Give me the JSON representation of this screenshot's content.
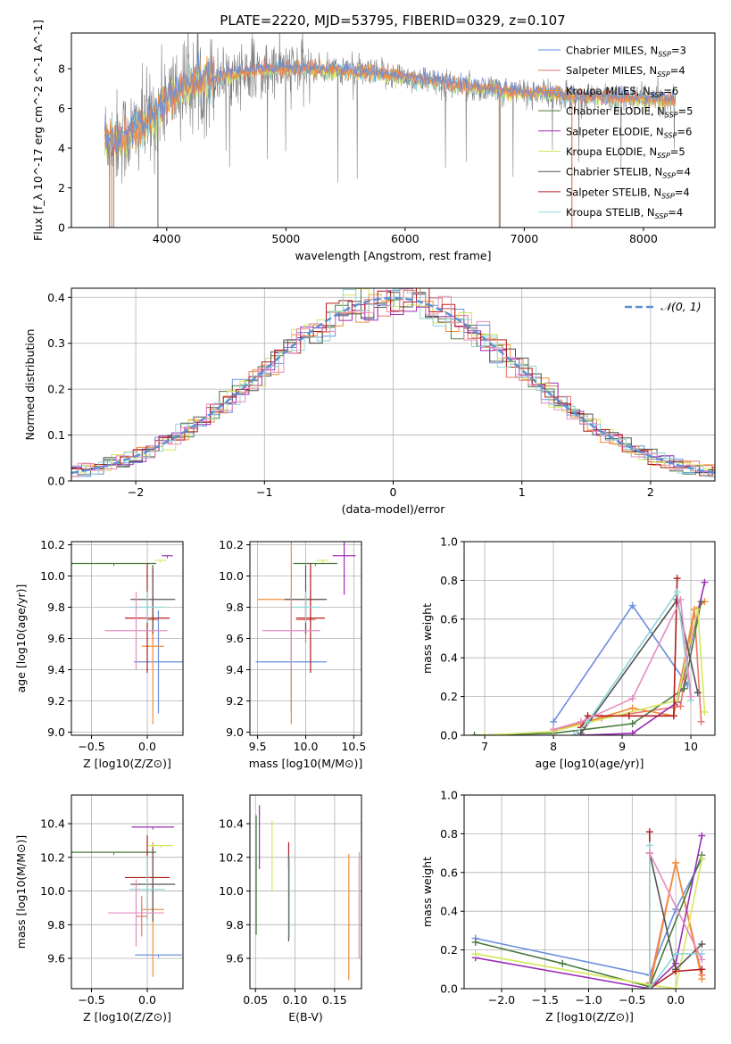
{
  "title": "PLATE=2220, MJD=53795, FIBERID=0329, z=0.107",
  "colors": {
    "Chabrier MILES": "#6a8fdc",
    "Salpeter MILES": "#e8756b",
    "Kroupa MILES": "#f08d3a",
    "Chabrier ELODIE": "#4a7a3f",
    "Salpeter ELODIE": "#9b2fb5",
    "Kroupa ELODIE": "#d4e85a",
    "Chabrier STELIB": "#555555",
    "Salpeter STELIB": "#b01c1c",
    "Kroupa STELIB": "#8fd4d8",
    "extra1": "#e58cc2",
    "data": "#808080",
    "normal": "#5b8fd6"
  },
  "chart_data": [
    {
      "id": "spectrum",
      "type": "line",
      "xlabel": "wavelength [Angstrom, rest frame]",
      "ylabel": "Flux [f_λ 10^-17 erg cm^-2 s^-1 A^-1]",
      "xlim": [
        3200,
        8600
      ],
      "ylim": [
        0,
        9.8
      ],
      "xticks": [
        4000,
        5000,
        6000,
        7000,
        8000
      ],
      "yticks": [
        0,
        2,
        4,
        6,
        8
      ],
      "legend_placement": "top-right",
      "legend": [
        "Chabrier MILES, N_SSP=3",
        "Salpeter MILES, N_SSP=4",
        "Kroupa MILES, N_SSP=6",
        "Chabrier ELODIE, N_SSP=5",
        "Salpeter ELODIE, N_SSP=6",
        "Kroupa ELODIE, N_SSP=5",
        "Chabrier STELIB, N_SSP=4",
        "Salpeter STELIB, N_SSP=4",
        "Kroupa STELIB, N_SSP=4"
      ],
      "x_range": [
        3480,
        8270
      ],
      "continuum": [
        [
          3480,
          4.4
        ],
        [
          3700,
          4.7
        ],
        [
          3900,
          5.6
        ],
        [
          4000,
          6.6
        ],
        [
          4200,
          7.2
        ],
        [
          4500,
          7.7
        ],
        [
          4800,
          7.9
        ],
        [
          5100,
          8.0
        ],
        [
          5500,
          7.9
        ],
        [
          6000,
          7.6
        ],
        [
          6500,
          7.1
        ],
        [
          7000,
          6.8
        ],
        [
          7500,
          6.6
        ],
        [
          8000,
          6.5
        ],
        [
          8270,
          6.4
        ]
      ],
      "grid": false
    },
    {
      "id": "residual-hist",
      "type": "line",
      "xlabel": "(data-model)/error",
      "ylabel": "Normed distribution",
      "xlim": [
        -2.5,
        2.5
      ],
      "ylim": [
        0,
        0.42
      ],
      "xticks": [
        -2,
        -1,
        0,
        1,
        2
      ],
      "yticks": [
        0.0,
        0.1,
        0.2,
        0.3,
        0.4
      ],
      "bin_width": 0.1,
      "legend": [
        "𝒩(0, 1)"
      ],
      "legend_placement": "top-right",
      "grid": true
    },
    {
      "id": "age-vs-z",
      "type": "scatter",
      "xlabel": "Z [log10(Z/Z⊙)]",
      "ylabel": "age [log10(age/yr)]",
      "xlim": [
        -0.68,
        0.32
      ],
      "ylim": [
        8.98,
        10.22
      ],
      "xticks": [
        -0.5,
        0.0
      ],
      "xticklabels": [
        "−0.5",
        "0.0"
      ],
      "yticks": [
        9.0,
        9.2,
        9.4,
        9.6,
        9.8,
        10.0,
        10.2
      ],
      "points": [
        {
          "series": "Chabrier MILES",
          "x": 0.1,
          "xerr": 0.22,
          "y": 9.45,
          "yerr": 0.33
        },
        {
          "series": "Salpeter MILES",
          "x": 0.05,
          "xerr": 0.05,
          "y": 9.72,
          "yerr": 0.15
        },
        {
          "series": "Kroupa MILES",
          "x": 0.05,
          "xerr": 0.1,
          "y": 9.55,
          "yerr": 0.5
        },
        {
          "series": "Chabrier ELODIE",
          "x": -0.3,
          "xerr": 0.38,
          "y": 10.08,
          "yerr": 0.0
        },
        {
          "series": "Salpeter ELODIE",
          "x": 0.18,
          "xerr": 0.05,
          "y": 10.13,
          "yerr": 0.0
        },
        {
          "series": "Kroupa ELODIE",
          "x": 0.12,
          "xerr": 0.05,
          "y": 10.1,
          "yerr": 0.0
        },
        {
          "series": "Chabrier STELIB",
          "x": 0.05,
          "xerr": 0.2,
          "y": 9.85,
          "yerr": 0.22
        },
        {
          "series": "Salpeter STELIB",
          "x": 0.0,
          "xerr": 0.2,
          "y": 9.73,
          "yerr": 0.35
        },
        {
          "series": "Kroupa STELIB",
          "x": 0.0,
          "xerr": 0.16,
          "y": 9.8,
          "yerr": 0.1
        },
        {
          "series": "extra1",
          "x": -0.1,
          "xerr": 0.28,
          "y": 9.65,
          "yerr": 0.25
        }
      ],
      "grid": true
    },
    {
      "id": "age-vs-mass",
      "type": "scatter",
      "xlabel": "mass [log10(M/M⊙)]",
      "ylabel": "",
      "xlim": [
        9.42,
        10.58
      ],
      "ylim": [
        8.98,
        10.22
      ],
      "xticks": [
        9.5,
        10.0,
        10.5
      ],
      "yticks": [
        9.0,
        9.2,
        9.4,
        9.6,
        9.8,
        10.0,
        10.2
      ],
      "points": [
        {
          "series": "Chabrier MILES",
          "x": 9.85,
          "xerr": 0.37,
          "y": 9.45,
          "yerr": 0.33
        },
        {
          "series": "Salpeter MILES",
          "x": 10.0,
          "xerr": 0.1,
          "y": 9.72,
          "yerr": 0.15
        },
        {
          "series": "Kroupa MILES",
          "x": 9.85,
          "xerr": 0.35,
          "y": 9.85,
          "yerr": 0.8
        },
        {
          "series": "Chabrier ELODIE",
          "x": 10.1,
          "xerr": 0.23,
          "y": 10.08,
          "yerr": 0.0
        },
        {
          "series": "Salpeter ELODIE",
          "x": 10.4,
          "xerr": 0.12,
          "y": 10.13,
          "yerr": 0.25
        },
        {
          "series": "Kroupa ELODIE",
          "x": 10.18,
          "xerr": 0.06,
          "y": 10.1,
          "yerr": 0.0
        },
        {
          "series": "Chabrier STELIB",
          "x": 10.0,
          "xerr": 0.22,
          "y": 9.85,
          "yerr": 0.22
        },
        {
          "series": "Salpeter STELIB",
          "x": 10.05,
          "xerr": 0.15,
          "y": 9.73,
          "yerr": 0.35
        },
        {
          "series": "Kroupa STELIB",
          "x": 10.0,
          "xerr": 0.15,
          "y": 9.8,
          "yerr": 0.1
        },
        {
          "series": "extra1",
          "x": 9.85,
          "xerr": 0.3,
          "y": 9.65,
          "yerr": 0.25
        }
      ],
      "grid": true
    },
    {
      "id": "weight-vs-age",
      "type": "line",
      "xlabel": "age [log10(age/yr)]",
      "ylabel": "mass weight",
      "xlim": [
        6.7,
        10.35
      ],
      "ylim": [
        0,
        1.0
      ],
      "xticks": [
        7,
        8,
        9,
        10
      ],
      "yticks": [
        0.0,
        0.2,
        0.4,
        0.6,
        0.8,
        1.0
      ],
      "series": [
        {
          "name": "Chabrier MILES",
          "points": [
            [
              8.0,
              0.07
            ],
            [
              9.15,
              0.67
            ],
            [
              9.95,
              0.26
            ]
          ]
        },
        {
          "name": "Salpeter MILES",
          "points": [
            [
              8.0,
              0.03
            ],
            [
              8.7,
              0.09
            ],
            [
              9.85,
              0.15
            ],
            [
              10.05,
              0.65
            ],
            [
              10.15,
              0.07
            ]
          ]
        },
        {
          "name": "Kroupa MILES",
          "points": [
            [
              8.0,
              0.02
            ],
            [
              9.15,
              0.14
            ],
            [
              9.75,
              0.1
            ],
            [
              10.05,
              0.65
            ],
            [
              10.2,
              0.69
            ]
          ]
        },
        {
          "name": "Chabrier ELODIE",
          "points": [
            [
              6.85,
              0.0
            ],
            [
              8.0,
              0.01
            ],
            [
              9.15,
              0.06
            ],
            [
              9.9,
              0.24
            ],
            [
              10.15,
              0.69
            ]
          ]
        },
        {
          "name": "Salpeter ELODIE",
          "points": [
            [
              8.4,
              0.0
            ],
            [
              9.15,
              0.01
            ],
            [
              9.8,
              0.17
            ],
            [
              10.2,
              0.79
            ]
          ]
        },
        {
          "name": "Kroupa ELODIE",
          "points": [
            [
              7.0,
              0.0
            ],
            [
              8.0,
              0.02
            ],
            [
              9.8,
              0.18
            ],
            [
              10.1,
              0.65
            ],
            [
              10.2,
              0.12
            ]
          ]
        },
        {
          "name": "Chabrier STELIB",
          "points": [
            [
              8.4,
              0.01
            ],
            [
              9.8,
              0.7
            ],
            [
              10.1,
              0.22
            ]
          ]
        },
        {
          "name": "Salpeter STELIB",
          "points": [
            [
              8.4,
              0.04
            ],
            [
              8.5,
              0.1
            ],
            [
              9.1,
              0.1
            ],
            [
              9.75,
              0.1
            ],
            [
              9.8,
              0.81
            ]
          ]
        },
        {
          "name": "Kroupa STELIB",
          "points": [
            [
              8.3,
              0.0
            ],
            [
              8.5,
              0.07
            ],
            [
              9.8,
              0.74
            ],
            [
              10.0,
              0.18
            ]
          ]
        },
        {
          "name": "extra1",
          "points": [
            [
              8.0,
              0.03
            ],
            [
              8.4,
              0.07
            ],
            [
              9.15,
              0.19
            ],
            [
              9.85,
              0.7
            ],
            [
              10.0,
              0.2
            ]
          ]
        }
      ],
      "grid": true
    },
    {
      "id": "mass-vs-z",
      "type": "scatter",
      "xlabel": "Z [log10(Z/Z⊙)]",
      "ylabel": "mass [log10(M/M⊙)]",
      "xlim": [
        -0.68,
        0.32
      ],
      "ylim": [
        9.42,
        10.57
      ],
      "xticks": [
        -0.5,
        0.0
      ],
      "xticklabels": [
        "−0.5",
        "0.0"
      ],
      "yticks": [
        9.6,
        9.8,
        10.0,
        10.2,
        10.4
      ],
      "points": [
        {
          "series": "Chabrier MILES",
          "x": 0.1,
          "xerr": 0.21,
          "y": 9.62,
          "yerr": 0.0
        },
        {
          "series": "Salpeter MILES",
          "x": -0.05,
          "xerr": 0.05,
          "y": 9.85,
          "yerr": 0.12
        },
        {
          "series": "Kroupa MILES",
          "x": 0.05,
          "xerr": 0.1,
          "y": 9.89,
          "yerr": 0.4
        },
        {
          "series": "Chabrier ELODIE",
          "x": -0.3,
          "xerr": 0.38,
          "y": 10.23,
          "yerr": 0.0
        },
        {
          "series": "Salpeter ELODIE",
          "x": 0.05,
          "xerr": 0.19,
          "y": 10.38,
          "yerr": 0.0
        },
        {
          "series": "Kroupa ELODIE",
          "x": 0.12,
          "xerr": 0.11,
          "y": 10.27,
          "yerr": 0.0
        },
        {
          "series": "Chabrier STELIB",
          "x": 0.05,
          "xerr": 0.2,
          "y": 10.04,
          "yerr": 0.22
        },
        {
          "series": "Salpeter STELIB",
          "x": 0.0,
          "xerr": 0.2,
          "y": 10.08,
          "yerr": 0.25
        },
        {
          "series": "Kroupa STELIB",
          "x": 0.0,
          "xerr": 0.16,
          "y": 10.01,
          "yerr": 0.2
        },
        {
          "series": "extra1",
          "x": -0.1,
          "xerr": 0.25,
          "y": 9.87,
          "yerr": 0.2
        }
      ],
      "grid": true
    },
    {
      "id": "mass-vs-ebv",
      "type": "scatter",
      "xlabel": "E(B-V)",
      "ylabel": "",
      "xlim": [
        0.043,
        0.184
      ],
      "ylim": [
        9.42,
        10.57
      ],
      "xticks": [
        0.05,
        0.1,
        0.15
      ],
      "xticklabels": [
        "0.05",
        "0.10",
        "0.15"
      ],
      "yticks": [
        9.6,
        9.8,
        10.0,
        10.2,
        10.4
      ],
      "segments": [
        {
          "series": "Chabrier ELODIE",
          "x": 0.051,
          "y0": 9.74,
          "y1": 10.45
        },
        {
          "series": "Salpeter ELODIE",
          "x": 0.055,
          "y0": 10.13,
          "y1": 10.51
        },
        {
          "series": "Kroupa ELODIE",
          "x": 0.071,
          "y0": 10.0,
          "y1": 10.42
        },
        {
          "series": "Salpeter STELIB",
          "x": 0.092,
          "y0": 10.14,
          "y1": 10.29
        },
        {
          "series": "Chabrier STELIB",
          "x": 0.092,
          "y0": 9.7,
          "y1": 10.22
        },
        {
          "series": "Kroupa STELIB",
          "x": 0.093,
          "y0": 9.72,
          "y1": 10.2
        },
        {
          "series": "Kroupa MILES",
          "x": 0.168,
          "y0": 9.47,
          "y1": 10.22
        },
        {
          "series": "extra1",
          "x": 0.181,
          "y0": 9.6,
          "y1": 10.23
        }
      ],
      "grid": true
    },
    {
      "id": "weight-vs-z",
      "type": "line",
      "xlabel": "Z [log10(Z/Z⊙)]",
      "ylabel": "mass weight",
      "xlim": [
        -2.43,
        0.45
      ],
      "ylim": [
        0,
        1.0
      ],
      "xticks": [
        -2.0,
        -1.5,
        -1.0,
        -0.5,
        0.0
      ],
      "xticklabels": [
        "−2.0",
        "−1.5",
        "−1.0",
        "−0.5",
        "0.0"
      ],
      "yticks": [
        0.0,
        0.2,
        0.4,
        0.6,
        0.8,
        1.0
      ],
      "series": [
        {
          "name": "Chabrier MILES",
          "points": [
            [
              -2.3,
              0.26
            ],
            [
              -0.3,
              0.07
            ],
            [
              0.0,
              0.41
            ],
            [
              0.3,
              0.67
            ]
          ]
        },
        {
          "name": "Salpeter MILES",
          "points": [
            [
              -0.3,
              0.03
            ],
            [
              0.0,
              0.65
            ],
            [
              0.3,
              0.07
            ]
          ]
        },
        {
          "name": "Kroupa MILES",
          "points": [
            [
              -0.3,
              0.0
            ],
            [
              0.0,
              0.65
            ],
            [
              0.3,
              0.05
            ]
          ]
        },
        {
          "name": "Chabrier ELODIE",
          "points": [
            [
              -2.3,
              0.24
            ],
            [
              -1.3,
              0.13
            ],
            [
              -0.3,
              0.01
            ],
            [
              0.3,
              0.69
            ]
          ]
        },
        {
          "name": "Salpeter ELODIE",
          "points": [
            [
              -2.3,
              0.16
            ],
            [
              -0.3,
              0.0
            ],
            [
              0.0,
              0.13
            ],
            [
              0.3,
              0.79
            ]
          ]
        },
        {
          "name": "Kroupa ELODIE",
          "points": [
            [
              -2.3,
              0.18
            ],
            [
              -0.3,
              0.02
            ],
            [
              0.0,
              0.0
            ],
            [
              0.3,
              0.67
            ]
          ]
        },
        {
          "name": "Chabrier STELIB",
          "points": [
            [
              -0.3,
              0.7
            ],
            [
              0.0,
              0.1
            ],
            [
              0.3,
              0.23
            ]
          ]
        },
        {
          "name": "Salpeter STELIB",
          "points": [
            [
              -0.3,
              0.81
            ],
            [
              -0.3,
              0.0
            ],
            [
              0.0,
              0.09
            ],
            [
              0.3,
              0.1
            ]
          ]
        },
        {
          "name": "Kroupa STELIB",
          "points": [
            [
              -0.3,
              0.74
            ],
            [
              -0.3,
              0.0
            ],
            [
              0.0,
              0.18
            ],
            [
              0.3,
              0.18
            ]
          ]
        },
        {
          "name": "extra1",
          "points": [
            [
              -0.3,
              0.7
            ],
            [
              0.3,
              0.15
            ]
          ]
        }
      ],
      "grid": true
    }
  ]
}
